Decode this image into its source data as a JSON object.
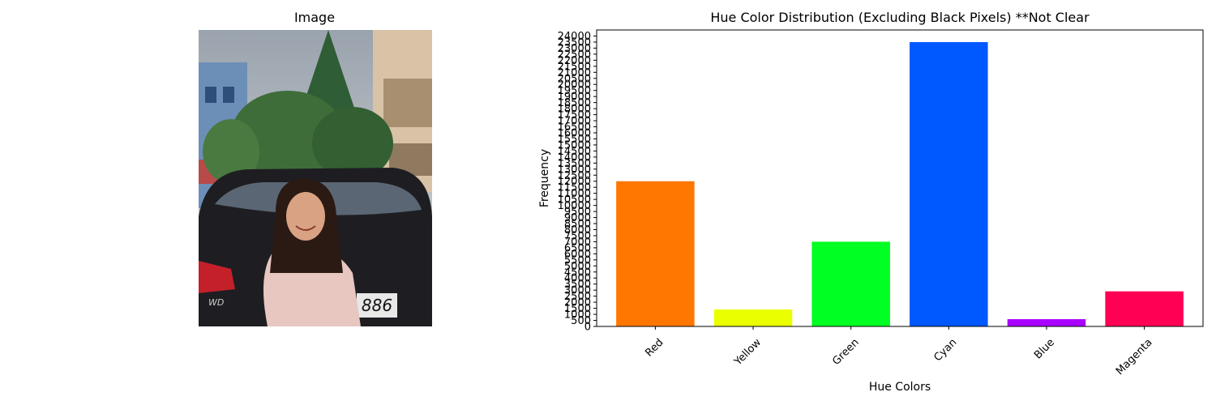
{
  "image_panel": {
    "title": "Image",
    "photo_plate_text": "886",
    "photo_badge_text": "WD"
  },
  "chart_data": {
    "type": "bar",
    "title": "Hue Color Distribution (Excluding Black Pixels) **Not Clear",
    "xlabel": "Hue Colors",
    "ylabel": "Frequency",
    "categories": [
      "Red",
      "Yellow",
      "Green",
      "Cyan",
      "Blue",
      "Magenta"
    ],
    "values": [
      12000,
      1400,
      7000,
      23500,
      600,
      2900
    ],
    "colors": [
      "#ff7700",
      "#eaff00",
      "#00ff22",
      "#0059ff",
      "#aa00ff",
      "#ff0055"
    ],
    "ylim": [
      0,
      24500
    ],
    "yticks": [
      0,
      500,
      1000,
      1500,
      2000,
      2500,
      3000,
      3500,
      4000,
      4500,
      5000,
      5500,
      6000,
      6500,
      7000,
      7500,
      8000,
      8500,
      9000,
      9500,
      10000,
      10500,
      11000,
      11500,
      12000,
      12500,
      13000,
      13500,
      14000,
      14500,
      15000,
      15500,
      16000,
      16500,
      17000,
      17500,
      18000,
      18500,
      19000,
      19500,
      20000,
      20500,
      21000,
      21500,
      22000,
      22500,
      23000,
      23500,
      24000
    ],
    "grid": false,
    "legend": "none"
  }
}
